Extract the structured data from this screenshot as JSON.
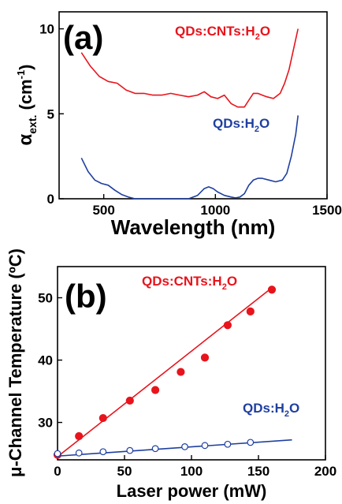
{
  "chart_data": [
    {
      "type": "line",
      "panel_label": "(a)",
      "xlabel": "Wavelength (nm)",
      "ylabel": "αext. (cm-1)",
      "ylabel_main": "α",
      "ylabel_sub": "ext.",
      "ylabel_unit_open": " (cm",
      "ylabel_unit_sup": "-1",
      "ylabel_unit_close": ")",
      "xlim": [
        300,
        1500
      ],
      "ylim": [
        0,
        11
      ],
      "xticks": [
        500,
        1000,
        1500
      ],
      "yticks": [
        0,
        5,
        10
      ],
      "grid": false,
      "series": [
        {
          "name": "QDs:CNTs:H2O",
          "label_main": "QDs:CNTs:H",
          "label_sub": "2",
          "label_end": "O",
          "color": "#e8141c",
          "x": [
            400,
            440,
            480,
            520,
            560,
            600,
            640,
            680,
            720,
            760,
            800,
            840,
            880,
            920,
            950,
            980,
            1010,
            1040,
            1070,
            1100,
            1130,
            1150,
            1170,
            1190,
            1210,
            1230,
            1260,
            1290,
            1310,
            1330,
            1350,
            1370
          ],
          "y": [
            8.6,
            7.8,
            7.2,
            6.9,
            6.8,
            6.4,
            6.2,
            6.2,
            6.1,
            6.1,
            6.2,
            6.1,
            6.0,
            6.1,
            6.3,
            6.0,
            5.9,
            6.1,
            5.6,
            5.4,
            5.4,
            5.8,
            6.2,
            6.2,
            6.1,
            6.0,
            5.9,
            6.2,
            6.8,
            7.6,
            8.8,
            10.0
          ]
        },
        {
          "name": "QDs:H2O",
          "label_main": "QDs:H",
          "label_sub": "2",
          "label_end": "O",
          "color": "#1f3fa0",
          "x": [
            400,
            430,
            460,
            490,
            520,
            550,
            580,
            610,
            640,
            700,
            760,
            800,
            840,
            880,
            920,
            950,
            970,
            990,
            1010,
            1040,
            1070,
            1090,
            1110,
            1130,
            1150,
            1170,
            1190,
            1210,
            1240,
            1270,
            1300,
            1320,
            1340,
            1360,
            1370
          ],
          "y": [
            2.4,
            1.6,
            1.1,
            0.9,
            0.8,
            0.5,
            0.25,
            0.1,
            0.0,
            0.0,
            0.0,
            0.0,
            0.0,
            0.0,
            0.2,
            0.6,
            0.7,
            0.6,
            0.4,
            0.2,
            0.1,
            0.05,
            0.1,
            0.3,
            0.8,
            1.1,
            1.2,
            1.2,
            1.1,
            1.0,
            1.1,
            1.5,
            2.5,
            3.8,
            4.9
          ]
        }
      ]
    },
    {
      "type": "scatter",
      "panel_label": "(b)",
      "xlabel": "Laser power (mW)",
      "ylabel": "μ-Channel Temperature (ºC)",
      "xlim": [
        0,
        200
      ],
      "ylim": [
        24,
        55
      ],
      "xticks": [
        0,
        50,
        100,
        150,
        200
      ],
      "yticks": [
        30,
        40,
        50
      ],
      "grid": false,
      "series": [
        {
          "name": "QDs:CNTs:H2O",
          "label_main": "QDs:CNTs:H",
          "label_sub": "2",
          "label_end": "O",
          "color": "#e8141c",
          "marker": "filled-circle",
          "x": [
            0,
            16,
            34,
            54,
            73,
            92,
            110,
            127,
            144,
            160
          ],
          "y": [
            24.8,
            27.8,
            30.7,
            33.5,
            35.2,
            38.1,
            40.4,
            45.6,
            47.8,
            51.3
          ],
          "fit": {
            "x": [
              0,
              160
            ],
            "y": [
              24.5,
              51.6
            ]
          }
        },
        {
          "name": "QDs:H2O",
          "label_main": "QDs:H",
          "label_sub": "2",
          "label_end": "O",
          "color": "#1f3fa0",
          "marker": "open-circle",
          "x": [
            0,
            16,
            34,
            54,
            73,
            95,
            110,
            127,
            144
          ],
          "y": [
            25.0,
            25.1,
            25.3,
            25.5,
            25.8,
            26.1,
            26.3,
            26.5,
            26.8
          ],
          "fit": {
            "x": [
              0,
              175
            ],
            "y": [
              24.6,
              27.2
            ]
          }
        }
      ]
    }
  ]
}
